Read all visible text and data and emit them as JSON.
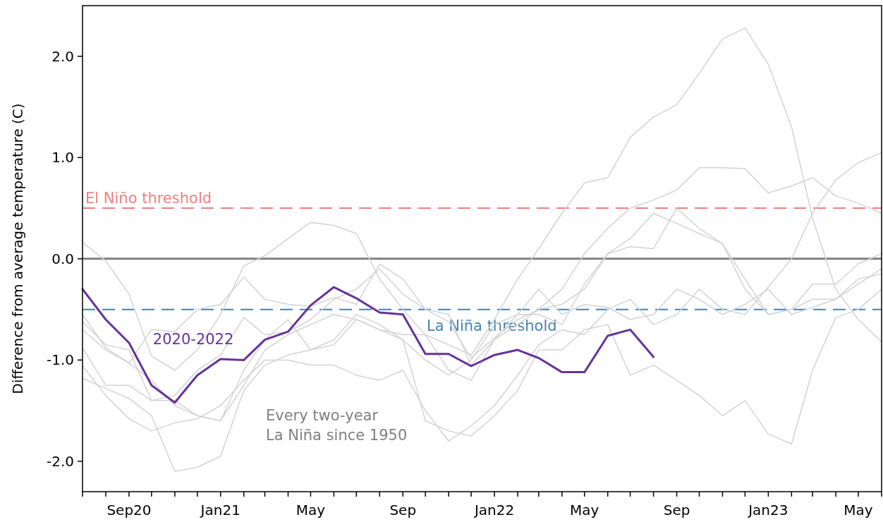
{
  "chart_data": {
    "type": "line",
    "ylabel": "Difference from average temperature (C)",
    "x": [
      "2020-07",
      "2020-08",
      "2020-09",
      "2020-10",
      "2020-11",
      "2020-12",
      "2021-01",
      "2021-02",
      "2021-03",
      "2021-04",
      "2021-05",
      "2021-06",
      "2021-07",
      "2021-08",
      "2021-09",
      "2021-10",
      "2021-11",
      "2021-12",
      "2022-01",
      "2022-02",
      "2022-03",
      "2022-04",
      "2022-05",
      "2022-06",
      "2022-07",
      "2022-08",
      "2022-09",
      "2022-10",
      "2022-11",
      "2022-12",
      "2023-01",
      "2023-02",
      "2023-03",
      "2023-04",
      "2023-05",
      "2023-06"
    ],
    "xlim": [
      "2020-07",
      "2023-06"
    ],
    "xticks": [
      {
        "value": "2020-07",
        "label": null
      },
      {
        "value": "2020-08",
        "label": null
      },
      {
        "value": "2020-09",
        "label": "Sep20"
      },
      {
        "value": "2020-10",
        "label": null
      },
      {
        "value": "2020-11",
        "label": null
      },
      {
        "value": "2020-12",
        "label": null
      },
      {
        "value": "2021-01",
        "label": "Jan21"
      },
      {
        "value": "2021-02",
        "label": null
      },
      {
        "value": "2021-03",
        "label": null
      },
      {
        "value": "2021-04",
        "label": null
      },
      {
        "value": "2021-05",
        "label": "May"
      },
      {
        "value": "2021-06",
        "label": null
      },
      {
        "value": "2021-07",
        "label": null
      },
      {
        "value": "2021-08",
        "label": null
      },
      {
        "value": "2021-09",
        "label": "Sep"
      },
      {
        "value": "2021-10",
        "label": null
      },
      {
        "value": "2021-11",
        "label": null
      },
      {
        "value": "2021-12",
        "label": null
      },
      {
        "value": "2022-01",
        "label": "Jan22"
      },
      {
        "value": "2022-02",
        "label": null
      },
      {
        "value": "2022-03",
        "label": null
      },
      {
        "value": "2022-04",
        "label": null
      },
      {
        "value": "2022-05",
        "label": "May"
      },
      {
        "value": "2022-06",
        "label": null
      },
      {
        "value": "2022-07",
        "label": null
      },
      {
        "value": "2022-08",
        "label": null
      },
      {
        "value": "2022-09",
        "label": "Sep"
      },
      {
        "value": "2022-10",
        "label": null
      },
      {
        "value": "2022-11",
        "label": null
      },
      {
        "value": "2022-12",
        "label": null
      },
      {
        "value": "2023-01",
        "label": "Jan23"
      },
      {
        "value": "2023-02",
        "label": null
      },
      {
        "value": "2023-03",
        "label": null
      },
      {
        "value": "2023-04",
        "label": null
      },
      {
        "value": "2023-05",
        "label": "May"
      },
      {
        "value": "2023-06",
        "label": null
      }
    ],
    "ylim": [
      -2.3,
      2.5
    ],
    "yticks": [
      {
        "value": -2,
        "label": "-2.0"
      },
      {
        "value": -1,
        "label": "-1.0"
      },
      {
        "value": 0,
        "label": "0.0"
      },
      {
        "value": 1,
        "label": "1.0"
      },
      {
        "value": 2,
        "label": "2.0"
      }
    ],
    "series": [
      {
        "color": "#d3d3d3",
        "values": [
          0.16,
          -0.02,
          -0.35,
          -0.96,
          -1.1,
          -0.9,
          -0.55,
          -0.07,
          0.03,
          0.2,
          0.36,
          0.33,
          0.25,
          -0.2,
          -0.5,
          -0.75,
          -0.85,
          -0.95,
          -0.6,
          -0.2,
          0.1,
          0.45,
          0.75,
          0.8,
          1.2,
          1.4,
          1.52,
          1.83,
          2.17,
          2.28,
          1.92,
          1.3,
          0.4,
          -0.3,
          -0.6,
          -0.82
        ]
      },
      {
        "color": "#d3d3d3",
        "values": [
          -0.55,
          -0.88,
          -1.03,
          -0.7,
          -0.72,
          -0.5,
          -0.45,
          -0.18,
          -0.4,
          -0.45,
          -0.47,
          -0.38,
          -0.45,
          -0.05,
          -0.2,
          -0.5,
          -0.55,
          -1.05,
          -0.8,
          -0.55,
          -0.3,
          -0.55,
          -0.45,
          -0.48,
          -0.6,
          -0.55,
          -0.3,
          -0.4,
          -0.55,
          -0.45,
          -0.3,
          -0.55,
          -0.48,
          -0.4,
          -0.25,
          -0.1
        ]
      },
      {
        "color": "#d3d3d3",
        "values": [
          -0.62,
          -0.85,
          -0.9,
          -1.4,
          -1.35,
          -1.1,
          -0.95,
          -0.58,
          -0.75,
          -0.72,
          -0.6,
          -0.4,
          -0.3,
          -0.1,
          -0.35,
          -0.5,
          -0.62,
          -0.98,
          -0.78,
          -0.6,
          -0.5,
          -0.3,
          0.05,
          0.3,
          0.5,
          0.58,
          0.68,
          0.9,
          0.9,
          0.89,
          0.65,
          0.72,
          0.8,
          0.62,
          0.55,
          0.45
        ]
      },
      {
        "color": "#d3d3d3",
        "values": [
          -0.7,
          -0.9,
          -1.03,
          -1.2,
          -1.45,
          -1.55,
          -1.6,
          -1.25,
          -0.9,
          -0.75,
          -0.65,
          -0.55,
          -0.6,
          -0.7,
          -0.75,
          -0.75,
          -1.1,
          -1.2,
          -0.8,
          -0.65,
          -0.5,
          -0.45,
          -0.3,
          0.05,
          0.2,
          0.45,
          0.35,
          0.25,
          0.15,
          -0.3,
          -0.55,
          -0.5,
          -0.25,
          -0.25,
          -0.05,
          0.05
        ]
      },
      {
        "color": "#d3d3d3",
        "values": [
          -0.88,
          -1.25,
          -1.25,
          -1.4,
          -1.4,
          -1.55,
          -1.6,
          -1.1,
          -0.8,
          -0.6,
          -0.9,
          -0.85,
          -0.6,
          -0.7,
          -0.8,
          -1.0,
          -1.15,
          -1.0,
          -0.65,
          -0.55,
          -0.55,
          -0.65,
          -0.25,
          0.05,
          0.12,
          0.1,
          0.5,
          0.3,
          0.15,
          -0.2,
          -0.55,
          -0.5,
          -0.4,
          -0.4,
          -0.2,
          -0.15
        ]
      },
      {
        "color": "#d3d3d3",
        "values": [
          -1.06,
          -1.35,
          -1.58,
          -1.7,
          -1.62,
          -1.58,
          -1.45,
          -1.2,
          -1.0,
          -1.0,
          -1.05,
          -1.05,
          -1.15,
          -1.2,
          -1.1,
          -1.5,
          -1.8,
          -1.65,
          -1.45,
          -1.15,
          -0.85,
          -0.7,
          -0.75,
          -0.5,
          -0.4,
          -0.65,
          -0.55,
          -0.3,
          -0.5,
          -0.55,
          -0.28,
          0.0,
          0.45,
          0.78,
          0.95,
          1.05
        ]
      },
      {
        "color": "#d3d3d3",
        "values": [
          -1.18,
          -1.28,
          -1.38,
          -1.55,
          -2.1,
          -2.06,
          -1.95,
          -1.3,
          -1.05,
          -0.95,
          -0.9,
          -0.8,
          -0.55,
          -0.65,
          -0.8,
          -1.6,
          -1.7,
          -1.75,
          -1.55,
          -1.3,
          -0.9,
          -0.9,
          -0.7,
          -0.65,
          -1.15,
          -1.05,
          -1.2,
          -1.35,
          -1.55,
          -1.4,
          -1.73,
          -1.83,
          -1.1,
          -0.58,
          -0.5,
          -0.3
        ]
      },
      {
        "name": "2020-2022",
        "color": "#663399",
        "values": [
          -0.3,
          -0.6,
          -0.83,
          -1.25,
          -1.42,
          -1.15,
          -0.99,
          -1.0,
          -0.8,
          -0.72,
          -0.46,
          -0.28,
          -0.39,
          -0.53,
          -0.55,
          -0.94,
          -0.94,
          -1.06,
          -0.95,
          -0.9,
          -0.98,
          -1.12,
          -1.12,
          -0.76,
          -0.7,
          -0.97,
          null,
          null,
          null,
          null,
          null,
          null,
          null,
          null,
          null,
          null
        ]
      }
    ],
    "ref_lines": [
      {
        "axis": "y",
        "value": 0,
        "color": "#808080",
        "line_style": "solid"
      },
      {
        "axis": "y",
        "value": 0.5,
        "label": "El Niño threshold",
        "color": "#f08080",
        "line_style": "dashed"
      },
      {
        "axis": "y",
        "value": -0.5,
        "label": "La Niña threshold",
        "color": "#4682b4",
        "line_style": "dashed"
      }
    ],
    "annotations": [
      "Every two-year\nLa Niña since 1950"
    ]
  }
}
